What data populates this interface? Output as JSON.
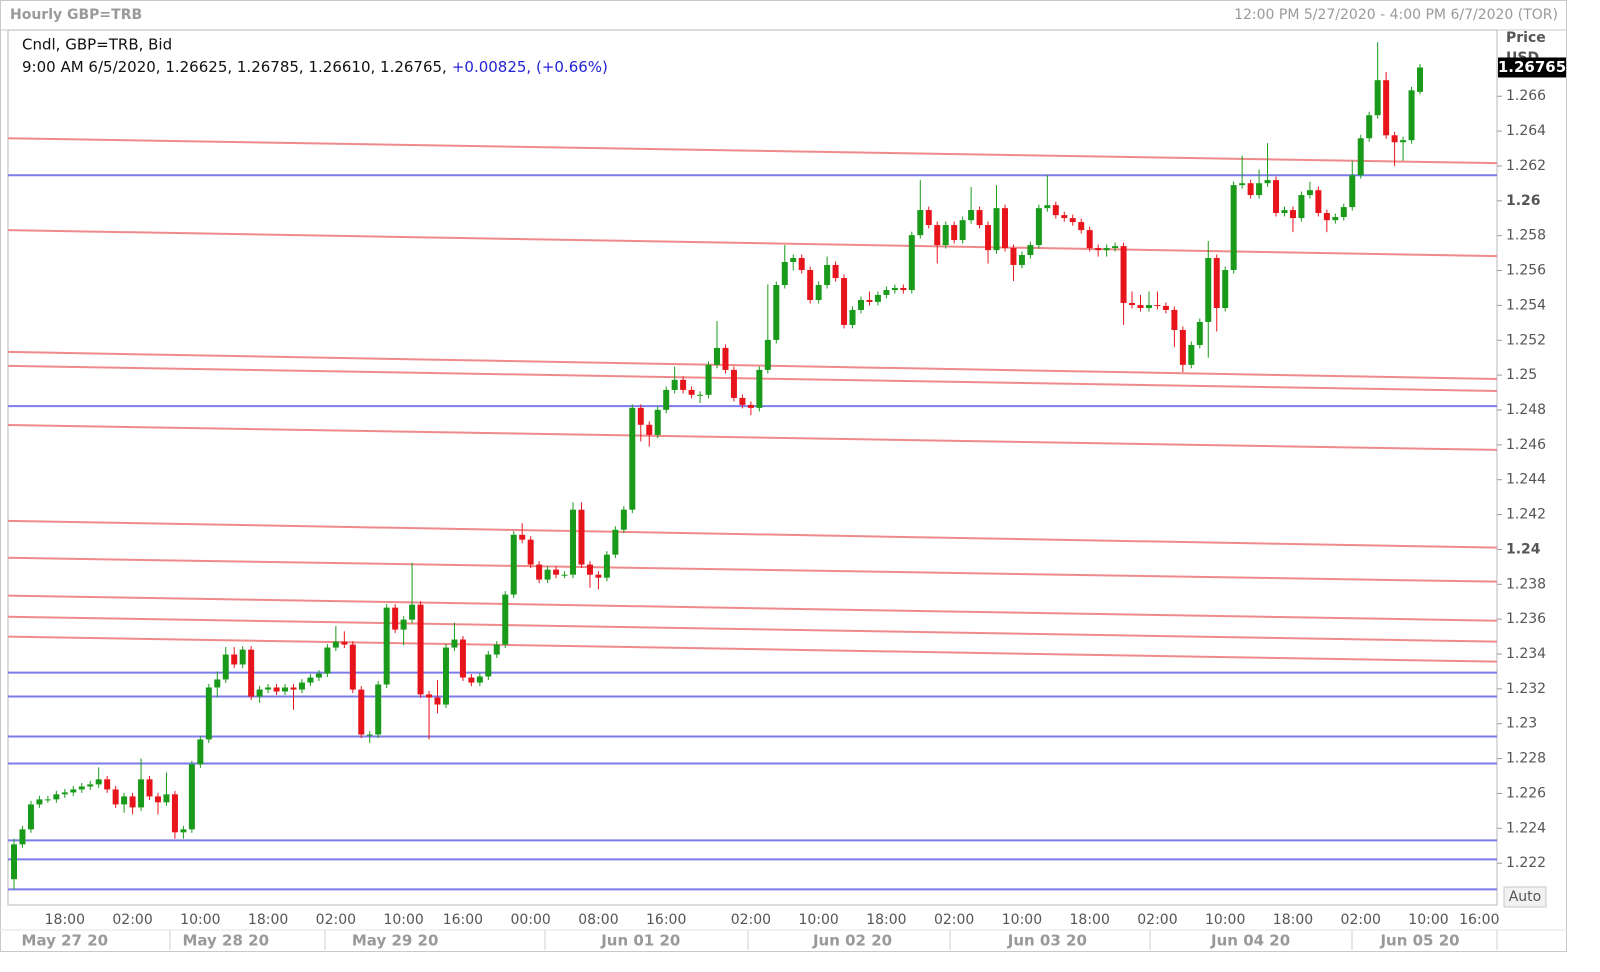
{
  "chart_data": {
    "type": "candlestick",
    "title": "Hourly GBP=TRB",
    "range_label": "12:00 PM 5/27/2020 - 4:00 PM 6/7/2020 (TOR)",
    "legend_title": "Cndl, GBP=TRB, Bid",
    "legend_info": "9:00 AM 6/5/2020, 1.26625, 1.26785, 1.26610, 1.26765,",
    "legend_change": "+0.00825, (+0.66%)",
    "y_label": "Price",
    "currency": "USD",
    "scale_button": "Auto",
    "last_price": 1.26765,
    "up_color": "#1a9a1a",
    "down_color": "#e8141c",
    "level_color": "#7b7bea",
    "trendline_color": "#f08a8a",
    "ylim": [
      1.2196,
      1.2698
    ],
    "yticks": [
      1.222,
      1.224,
      1.226,
      1.228,
      1.23,
      1.232,
      1.234,
      1.236,
      1.238,
      1.24,
      1.242,
      1.244,
      1.246,
      1.248,
      1.25,
      1.252,
      1.254,
      1.256,
      1.258,
      1.26,
      1.262,
      1.264,
      1.266
    ],
    "categories": [
      null,
      null,
      null,
      null,
      null,
      null,
      "18:00",
      null,
      null,
      null,
      null,
      null,
      null,
      null,
      "02:00",
      null,
      null,
      null,
      null,
      null,
      null,
      null,
      "10:00",
      null,
      null,
      null,
      null,
      null,
      null,
      null,
      "18:00",
      null,
      null,
      null,
      null,
      null,
      null,
      null,
      "02:00",
      null,
      null,
      null,
      null,
      null,
      null,
      null,
      "10:00",
      null,
      null,
      null,
      null,
      null,
      null,
      "16:00",
      null,
      null,
      null,
      null,
      null,
      null,
      null,
      "00:00",
      null,
      null,
      null,
      null,
      null,
      null,
      null,
      "08:00",
      null,
      null,
      null,
      null,
      null,
      null,
      null,
      "16:00",
      null,
      null,
      null,
      null,
      null,
      null,
      null,
      null,
      null,
      "02:00",
      null,
      null,
      null,
      null,
      null,
      null,
      null,
      "10:00",
      null,
      null,
      null,
      null,
      null,
      null,
      null,
      "18:00",
      null,
      null,
      null,
      null,
      null,
      null,
      null,
      "02:00",
      null,
      null,
      null,
      null,
      null,
      null,
      null,
      "10:00",
      null,
      null,
      null,
      null,
      null,
      null,
      null,
      "18:00",
      null,
      null,
      null,
      null,
      null,
      null,
      null,
      "02:00",
      null,
      null,
      null,
      null,
      null,
      null,
      null,
      "10:00",
      null,
      null,
      null,
      null,
      null,
      null,
      null,
      "18:00",
      null,
      null,
      null,
      null,
      null,
      null,
      null,
      "02:00",
      null,
      null,
      null,
      null,
      null,
      null,
      null,
      "10:00",
      null,
      null,
      null,
      null,
      null,
      "16:00"
    ],
    "dates": [
      null,
      null,
      null,
      null,
      null,
      null,
      "May 27 20",
      null,
      null,
      null,
      null,
      null,
      null,
      null,
      null,
      null,
      null,
      null,
      null,
      null,
      null,
      null,
      null,
      null,
      null,
      "May 28 20",
      null,
      null,
      null,
      null,
      null,
      null,
      null,
      null,
      null,
      null,
      null,
      null,
      null,
      null,
      null,
      null,
      null,
      null,
      null,
      "May 29 20",
      null,
      null,
      null,
      null,
      null,
      null,
      null,
      null,
      null,
      null,
      null,
      null,
      null,
      null,
      null,
      null,
      null,
      null,
      null,
      null,
      null,
      null,
      null,
      null,
      null,
      null,
      null,
      null,
      "Jun 01 20",
      null,
      null,
      null,
      null,
      null,
      null,
      null,
      null,
      null,
      null,
      null,
      null,
      null,
      null,
      null,
      null,
      null,
      null,
      null,
      null,
      null,
      null,
      null,
      null,
      "Jun 02 20",
      null,
      null,
      null,
      null,
      null,
      null,
      null,
      null,
      null,
      null,
      null,
      null,
      null,
      null,
      null,
      null,
      null,
      null,
      null,
      null,
      null,
      null,
      "Jun 03 20",
      null,
      null,
      null,
      null,
      null,
      null,
      null,
      null,
      null,
      null,
      null,
      null,
      null,
      null,
      null,
      null,
      null,
      null,
      null,
      null,
      null,
      null,
      null,
      "Jun 04 20",
      null,
      null,
      null,
      null,
      null,
      null,
      null,
      null,
      null,
      null,
      null,
      null,
      null,
      null,
      null,
      null,
      null,
      null,
      null,
      "Jun 05 20",
      null,
      null,
      null,
      null,
      null,
      null,
      null
    ],
    "open": [
      1.22108,
      1.22308,
      1.22394,
      1.22537,
      1.22566,
      1.22566,
      1.22595,
      1.22606,
      1.22623,
      1.2264,
      1.22652,
      1.22681,
      1.22623,
      1.22537,
      1.22583,
      1.2252,
      1.22681,
      1.22583,
      1.22549,
      1.22595,
      1.22377,
      1.22394,
      1.22767,
      1.2291,
      1.23208,
      1.23254,
      1.23397,
      1.2334,
      1.23425,
      1.23156,
      1.23196,
      1.23208,
      1.23185,
      1.23208,
      1.23196,
      1.23236,
      1.23265,
      1.23288,
      1.23437,
      1.23471,
      1.23454,
      1.23196,
      1.22938,
      1.22938,
      1.23225,
      1.23666,
      1.2354,
      1.23597,
      1.23683,
      1.23168,
      1.2315,
      1.2311,
      1.23437,
      1.23483,
      1.23265,
      1.23236,
      1.23271,
      1.23397,
      1.23454,
      1.23741,
      1.24084,
      1.24056,
      1.23913,
      1.23827,
      1.23884,
      1.23855,
      1.23855,
      1.24228,
      1.23913,
      1.23855,
      1.23838,
      1.2397,
      1.24113,
      1.24228,
      1.24812,
      1.24715,
      1.24657,
      1.24801,
      1.24915,
      1.24973,
      1.24915,
      1.24887,
      1.24887,
      1.25059,
      1.25156,
      1.2503,
      1.24869,
      1.24829,
      1.24812,
      1.2503,
      1.25202,
      1.25517,
      1.25649,
      1.25672,
      1.25603,
      1.25431,
      1.25517,
      1.25632,
      1.25557,
      1.25288,
      1.25374,
      1.25431,
      1.2542,
      1.2546,
      1.25488,
      1.255,
      1.25488,
      1.25803,
      1.25947,
      1.25861,
      1.25746,
      1.25861,
      1.25775,
      1.25889,
      1.25947,
      1.25861,
      1.25717,
      1.25958,
      1.25729,
      1.25632,
      1.25689,
      1.25746,
      1.25958,
      1.25975,
      1.25918,
      1.25901,
      1.25878,
      1.25832,
      1.25729,
      1.25717,
      1.25729,
      1.2574,
      1.25414,
      1.25402,
      1.25385,
      1.25402,
      1.25397,
      1.25374,
      1.25259,
      1.25059,
      1.25173,
      1.25305,
      1.25672,
      1.25385,
      1.25603,
      1.2609,
      1.26101,
      1.26033,
      1.26101,
      1.26119,
      1.2593,
      1.25947,
      1.25901,
      1.26033,
      1.26061,
      1.2593,
      1.25889,
      1.25907,
      1.25964,
      1.26147,
      1.26359,
      1.26491,
      1.26692,
      1.26376,
      1.26336,
      1.26348,
      1.26625,
      null,
      null,
      null,
      null,
      null,
      null,
      null
    ],
    "high": [
      1.2234,
      1.22414,
      1.22557,
      1.22586,
      1.22586,
      1.22615,
      1.22626,
      1.22643,
      1.2266,
      1.22672,
      1.2275,
      1.22701,
      1.22643,
      1.22603,
      1.22603,
      1.228,
      1.22701,
      1.22603,
      1.2272,
      1.22615,
      1.22414,
      1.22787,
      1.2293,
      1.23228,
      1.233,
      1.2344,
      1.2344,
      1.23445,
      1.23445,
      1.23216,
      1.23228,
      1.23228,
      1.23228,
      1.23228,
      1.23256,
      1.23285,
      1.23308,
      1.23457,
      1.2356,
      1.2353,
      1.23474,
      1.23216,
      1.22958,
      1.23245,
      1.23686,
      1.23686,
      1.23617,
      1.23924,
      1.23703,
      1.23188,
      1.2325,
      1.23457,
      1.2358,
      1.23503,
      1.23285,
      1.23291,
      1.23417,
      1.23474,
      1.23761,
      1.24104,
      1.2415,
      1.24076,
      1.23933,
      1.23904,
      1.23904,
      1.23875,
      1.2427,
      1.2427,
      1.23933,
      1.23875,
      1.2399,
      1.24133,
      1.24248,
      1.24832,
      1.24832,
      1.24735,
      1.24821,
      1.24935,
      1.2505,
      1.24993,
      1.24935,
      1.24907,
      1.25079,
      1.2531,
      1.25176,
      1.2505,
      1.24889,
      1.24849,
      1.2505,
      1.2552,
      1.25537,
      1.25746,
      1.25692,
      1.25692,
      1.25623,
      1.25537,
      1.2568,
      1.25652,
      1.25577,
      1.25394,
      1.25451,
      1.2548,
      1.2548,
      1.25508,
      1.2552,
      1.2552,
      1.25823,
      1.26119,
      1.25967,
      1.25881,
      1.25881,
      1.25881,
      1.25909,
      1.2608,
      1.25967,
      1.25881,
      1.2609,
      1.25978,
      1.25749,
      1.25709,
      1.25766,
      1.25978,
      1.26147,
      1.25995,
      1.25938,
      1.25921,
      1.25898,
      1.25852,
      1.25749,
      1.25749,
      1.2576,
      1.2576,
      1.2548,
      1.2546,
      1.2548,
      1.2548,
      1.25417,
      1.25394,
      1.25279,
      1.25193,
      1.25325,
      1.2577,
      1.25692,
      1.25623,
      1.2611,
      1.2626,
      1.26121,
      1.2618,
      1.26331,
      1.26139,
      1.25967,
      1.25967,
      1.26053,
      1.2611,
      1.26081,
      1.2595,
      1.25927,
      1.25984,
      1.2623,
      1.26379,
      1.26511,
      1.2691,
      1.2674,
      1.26396,
      1.26368,
      1.26654,
      1.26785,
      null,
      null,
      null,
      null,
      null,
      null,
      null
    ],
    "low": [
      1.2205,
      1.22288,
      1.22374,
      1.22517,
      1.22546,
      1.22546,
      1.22575,
      1.22586,
      1.22603,
      1.2262,
      1.22632,
      1.22603,
      1.22517,
      1.2249,
      1.2248,
      1.225,
      1.22563,
      1.2248,
      1.22529,
      1.2234,
      1.2234,
      1.22374,
      1.22747,
      1.2289,
      1.2315,
      1.23234,
      1.2332,
      1.2332,
      1.23136,
      1.2312,
      1.23176,
      1.23165,
      1.23165,
      1.2308,
      1.23176,
      1.23216,
      1.23245,
      1.23268,
      1.23417,
      1.23434,
      1.23176,
      1.22918,
      1.2289,
      1.22918,
      1.23205,
      1.2352,
      1.2345,
      1.23577,
      1.23148,
      1.2291,
      1.2306,
      1.2309,
      1.23417,
      1.23245,
      1.23216,
      1.23216,
      1.23251,
      1.23377,
      1.23434,
      1.23721,
      1.24036,
      1.23893,
      1.23807,
      1.23807,
      1.23835,
      1.23835,
      1.23835,
      1.23893,
      1.2378,
      1.2377,
      1.23818,
      1.2395,
      1.24093,
      1.24208,
      1.2462,
      1.2459,
      1.24637,
      1.24781,
      1.24895,
      1.24895,
      1.24867,
      1.2484,
      1.24867,
      1.25039,
      1.2501,
      1.24849,
      1.24809,
      1.2477,
      1.24792,
      1.2501,
      1.25182,
      1.25497,
      1.256,
      1.25583,
      1.25411,
      1.25411,
      1.25497,
      1.25537,
      1.25268,
      1.25268,
      1.25354,
      1.254,
      1.254,
      1.2544,
      1.25468,
      1.25468,
      1.25468,
      1.25783,
      1.25841,
      1.2564,
      1.25726,
      1.25755,
      1.25755,
      1.25869,
      1.25841,
      1.2564,
      1.25697,
      1.25709,
      1.2554,
      1.25612,
      1.25669,
      1.25726,
      1.25938,
      1.25898,
      1.25881,
      1.25858,
      1.25812,
      1.25709,
      1.2568,
      1.2568,
      1.25709,
      1.25288,
      1.25382,
      1.25365,
      1.25365,
      1.25377,
      1.25354,
      1.2516,
      1.25018,
      1.25039,
      1.25153,
      1.251,
      1.2525,
      1.25365,
      1.25583,
      1.2607,
      1.26013,
      1.26013,
      1.26081,
      1.2591,
      1.2591,
      1.2582,
      1.25881,
      1.26013,
      1.2591,
      1.2582,
      1.25869,
      1.25887,
      1.25944,
      1.26127,
      1.26339,
      1.26471,
      1.26356,
      1.262,
      1.2623,
      1.26328,
      1.2661,
      null,
      null,
      null,
      null,
      null,
      null,
      null
    ],
    "close": [
      1.22308,
      1.22394,
      1.22537,
      1.22566,
      1.22566,
      1.22595,
      1.22606,
      1.22623,
      1.2264,
      1.22652,
      1.22681,
      1.22623,
      1.22537,
      1.22583,
      1.2252,
      1.22681,
      1.22583,
      1.22549,
      1.22595,
      1.22377,
      1.22394,
      1.22767,
      1.2291,
      1.23208,
      1.23254,
      1.23397,
      1.2334,
      1.23425,
      1.23156,
      1.23196,
      1.23208,
      1.23185,
      1.23208,
      1.23196,
      1.23236,
      1.23265,
      1.23288,
      1.23437,
      1.23471,
      1.23454,
      1.23196,
      1.22938,
      1.22938,
      1.23225,
      1.23666,
      1.2354,
      1.23597,
      1.23683,
      1.23168,
      1.2315,
      1.2311,
      1.23437,
      1.23483,
      1.23265,
      1.23236,
      1.23271,
      1.23397,
      1.23454,
      1.23741,
      1.24084,
      1.24056,
      1.23913,
      1.23827,
      1.23884,
      1.23855,
      1.23855,
      1.24228,
      1.23913,
      1.23855,
      1.23838,
      1.2397,
      1.24113,
      1.24228,
      1.24812,
      1.24715,
      1.24657,
      1.24801,
      1.24915,
      1.24973,
      1.24915,
      1.24887,
      1.24887,
      1.25059,
      1.25156,
      1.2503,
      1.24869,
      1.24829,
      1.24812,
      1.2503,
      1.25202,
      1.25517,
      1.25649,
      1.25672,
      1.25603,
      1.25431,
      1.25517,
      1.25632,
      1.25557,
      1.25288,
      1.25374,
      1.25431,
      1.2542,
      1.2546,
      1.25488,
      1.255,
      1.25488,
      1.25803,
      1.25947,
      1.25861,
      1.25746,
      1.25861,
      1.25775,
      1.25889,
      1.25947,
      1.25861,
      1.25717,
      1.25958,
      1.25729,
      1.25632,
      1.25689,
      1.25746,
      1.25958,
      1.25975,
      1.25918,
      1.25901,
      1.25878,
      1.25832,
      1.25729,
      1.25717,
      1.25729,
      1.2574,
      1.25414,
      1.25402,
      1.25385,
      1.25402,
      1.25397,
      1.25374,
      1.25259,
      1.25059,
      1.25173,
      1.25305,
      1.25672,
      1.25385,
      1.25603,
      1.2609,
      1.26101,
      1.26033,
      1.26101,
      1.26119,
      1.2593,
      1.25947,
      1.25901,
      1.26033,
      1.26061,
      1.2593,
      1.25889,
      1.25907,
      1.25964,
      1.26147,
      1.26359,
      1.26491,
      1.26692,
      1.26376,
      1.26336,
      1.26348,
      1.26634,
      1.26765,
      null,
      null,
      null,
      null,
      null,
      null,
      null
    ],
    "levels": [
      1.26147,
      1.24822,
      1.23293,
      1.23156,
      1.22927,
      1.22772,
      1.22331,
      1.22222,
      1.2205
    ],
    "trendlines": [
      {
        "start": 1.26359,
        "end": 1.26216
      },
      {
        "start": 1.25832,
        "end": 1.25683
      },
      {
        "start": 1.25133,
        "end": 1.24978
      },
      {
        "start": 1.25053,
        "end": 1.24909
      },
      {
        "start": 1.24714,
        "end": 1.24571
      },
      {
        "start": 1.24164,
        "end": 1.2401
      },
      {
        "start": 1.23952,
        "end": 1.23815
      },
      {
        "start": 1.23735,
        "end": 1.23591
      },
      {
        "start": 1.23614,
        "end": 1.23471
      },
      {
        "start": 1.235,
        "end": 1.23356
      }
    ]
  }
}
